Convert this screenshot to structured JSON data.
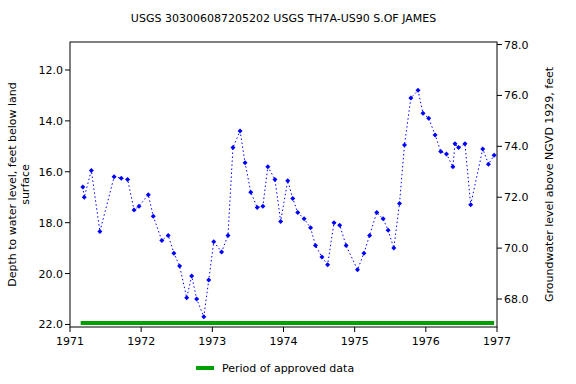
{
  "chart_data": {
    "type": "line",
    "title": "USGS 303006087205202 USGS TH7A-US90 S.OF JAMES",
    "y_label": [
      "Depth to water level, feet below land",
      "surface"
    ],
    "y2_label": "Groundwater level above NGVD 1929, feet",
    "xlim": [
      1971,
      1977
    ],
    "xticks": [
      1971,
      1972,
      1973,
      1974,
      1975,
      1976,
      1977
    ],
    "ylim": [
      22.1,
      10.9
    ],
    "yticks": [
      {
        "value": 12,
        "label": "12.0"
      },
      {
        "value": 14,
        "label": "14.0"
      },
      {
        "value": 16,
        "label": "16.0"
      },
      {
        "value": 18,
        "label": "18.0"
      },
      {
        "value": 20,
        "label": "20.0"
      },
      {
        "value": 22,
        "label": "22.0"
      }
    ],
    "y2lim": [
      66.9,
      78.1
    ],
    "y2ticks": [
      {
        "value": 68,
        "label": "68.0"
      },
      {
        "value": 70,
        "label": "70.0"
      },
      {
        "value": 72,
        "label": "72.0"
      },
      {
        "value": 74,
        "label": "74.0"
      },
      {
        "value": 76,
        "label": "76.0"
      },
      {
        "value": 78,
        "label": "78.0"
      }
    ],
    "grid": false,
    "series": [
      {
        "color": "#0000ff",
        "marker": "diamond",
        "line_style": "dotted",
        "x": [
          1971.18,
          1971.2,
          1971.3,
          1971.42,
          1971.62,
          1971.72,
          1971.81,
          1971.9,
          1971.97,
          1972.1,
          1972.17,
          1972.29,
          1972.38,
          1972.46,
          1972.54,
          1972.64,
          1972.71,
          1972.78,
          1972.88,
          1972.95,
          1973.02,
          1973.13,
          1973.22,
          1973.29,
          1973.39,
          1973.46,
          1973.54,
          1973.63,
          1973.71,
          1973.78,
          1973.88,
          1973.96,
          1974.06,
          1974.13,
          1974.2,
          1974.29,
          1974.38,
          1974.45,
          1974.54,
          1974.62,
          1974.71,
          1974.79,
          1974.88,
          1975.04,
          1975.13,
          1975.21,
          1975.31,
          1975.4,
          1975.47,
          1975.55,
          1975.63,
          1975.7,
          1975.79,
          1975.89,
          1975.96,
          1976.04,
          1976.13,
          1976.21,
          1976.29,
          1976.38,
          1976.41,
          1976.46,
          1976.55,
          1976.63,
          1976.8,
          1976.88,
          1976.96
        ],
        "values": [
          16.6,
          17.0,
          15.95,
          18.35,
          16.2,
          16.25,
          16.3,
          17.5,
          17.35,
          16.9,
          17.75,
          18.7,
          18.5,
          19.2,
          19.7,
          20.95,
          20.1,
          21.0,
          21.7,
          20.25,
          18.75,
          19.15,
          18.5,
          15.05,
          14.4,
          15.65,
          16.8,
          17.4,
          17.35,
          15.8,
          16.3,
          17.95,
          16.35,
          17.05,
          17.6,
          17.85,
          18.2,
          18.9,
          19.35,
          19.65,
          18.0,
          18.1,
          18.9,
          19.85,
          19.2,
          18.5,
          17.6,
          17.85,
          18.3,
          19.0,
          17.25,
          14.95,
          13.1,
          12.8,
          13.7,
          13.9,
          14.55,
          15.2,
          15.3,
          15.8,
          14.9,
          15.05,
          14.9,
          17.3,
          15.1,
          15.7,
          15.35
        ]
      }
    ],
    "periods": [
      {
        "name": "Period of approved data",
        "color": "#00a000",
        "x": [
          1971.15,
          1976.96
        ]
      }
    ],
    "legend": "bottom"
  }
}
